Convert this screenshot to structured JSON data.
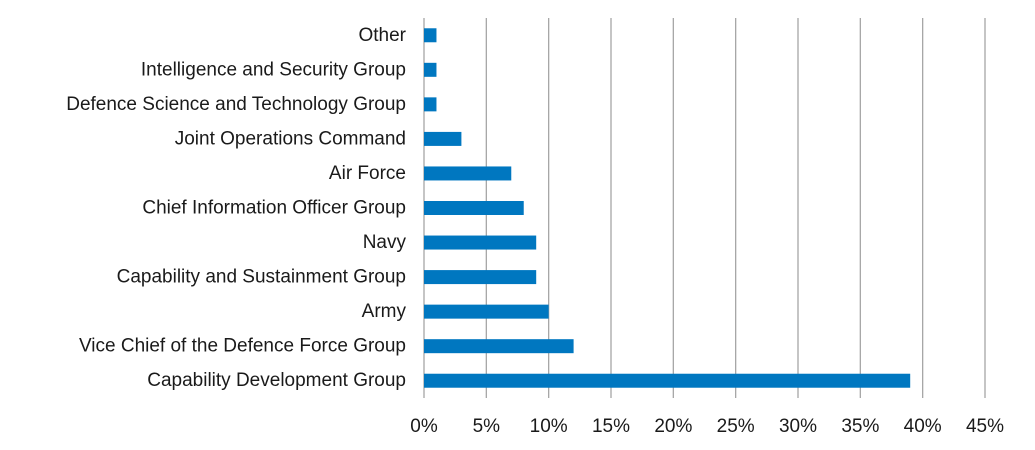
{
  "chart_data": {
    "type": "bar",
    "orientation": "horizontal",
    "categories": [
      "Other",
      "Intelligence and Security Group",
      "Defence Science and Technology Group",
      "Joint Operations Command",
      "Air Force",
      "Chief Information Officer Group",
      "Navy",
      "Capability and Sustainment Group",
      "Army",
      "Vice Chief of the Defence Force Group",
      "Capability Development Group"
    ],
    "values": [
      1,
      1,
      1,
      3,
      7,
      8,
      9,
      9,
      10,
      12,
      39
    ],
    "xlim": [
      0,
      45
    ],
    "x_ticks": [
      0,
      5,
      10,
      15,
      20,
      25,
      30,
      35,
      40,
      45
    ],
    "x_tick_labels": [
      "0%",
      "5%",
      "10%",
      "15%",
      "20%",
      "25%",
      "30%",
      "35%",
      "40%",
      "45%"
    ],
    "title": "",
    "xlabel": "",
    "ylabel": "",
    "grid": "vertical",
    "legend": "none",
    "bar_color": "#0077c0"
  }
}
